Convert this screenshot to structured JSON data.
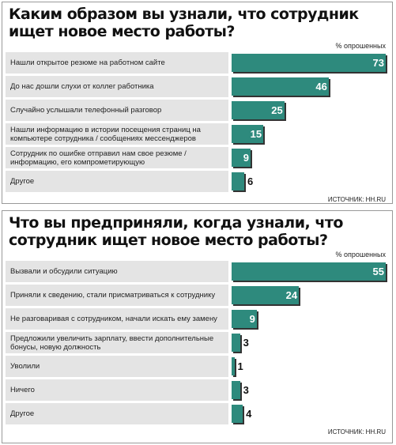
{
  "chart_data": [
    {
      "type": "bar",
      "title": "Каким образом вы узнали, что сотрудник ищет новое место работы?",
      "unit": "% опрошенных",
      "source": "ИСТОЧНИК: HH.RU",
      "color": "#2e8a7d",
      "categories": [
        "Нашли открытое резюме на работном сайте",
        "До нас дошли слухи от коллег работника",
        "Случайно услышали телефонный разговор",
        "Нашли информацию в истории посещения страниц на компьютере сотрудника / сообщениях мессенджеров",
        "Сотрудник по ошибке отправил нам свое резюме / информацию, его компрометирующую",
        "Другое"
      ],
      "values": [
        73,
        46,
        25,
        15,
        9,
        6
      ]
    },
    {
      "type": "bar",
      "title": "Что вы предприняли, когда узнали, что сотрудник ищет новое место работы?",
      "unit": "% опрошенных",
      "source": "ИСТОЧНИК: HH.RU",
      "color": "#2e8a7d",
      "categories": [
        "Вызвали и обсудили ситуацию",
        "Приняли к сведению, стали присматриваться к сотруднику",
        "Не разговаривая с сотрудником, начали искать ему замену",
        "Предложили увеличить зарплату, ввести дополнительные бонусы, новую должность",
        "Уволили",
        "Ничего",
        "Другое"
      ],
      "values": [
        55,
        24,
        9,
        3,
        1,
        3,
        4
      ]
    }
  ]
}
